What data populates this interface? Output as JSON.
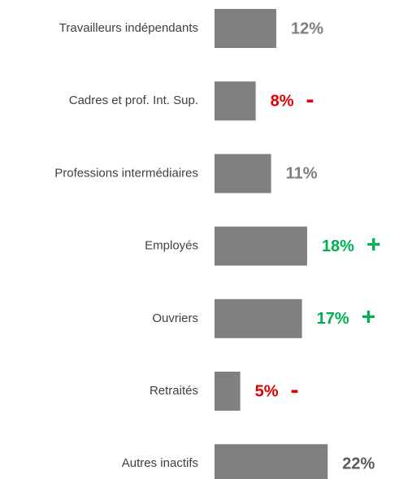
{
  "chart_data": {
    "type": "bar",
    "orientation": "horizontal",
    "categories": [
      "Travailleurs indépendants",
      "Cadres et prof. Int. Sup.",
      "Professions intermédiaires",
      "Employés",
      "Ouvriers",
      "Retraités",
      "Autres inactifs"
    ],
    "values": [
      12,
      8,
      11,
      18,
      17,
      5,
      22
    ],
    "value_labels": [
      "12%",
      "8%",
      "11%",
      "18%",
      "17%",
      "5%",
      "22%"
    ],
    "label_colors": [
      "#7f7f7f",
      "#e00000",
      "#7f7f7f",
      "#00b050",
      "#00b050",
      "#e00000",
      "#595959"
    ],
    "markers": [
      null,
      "-",
      null,
      "+",
      "+",
      "-",
      null
    ],
    "color": "#808080"
  }
}
